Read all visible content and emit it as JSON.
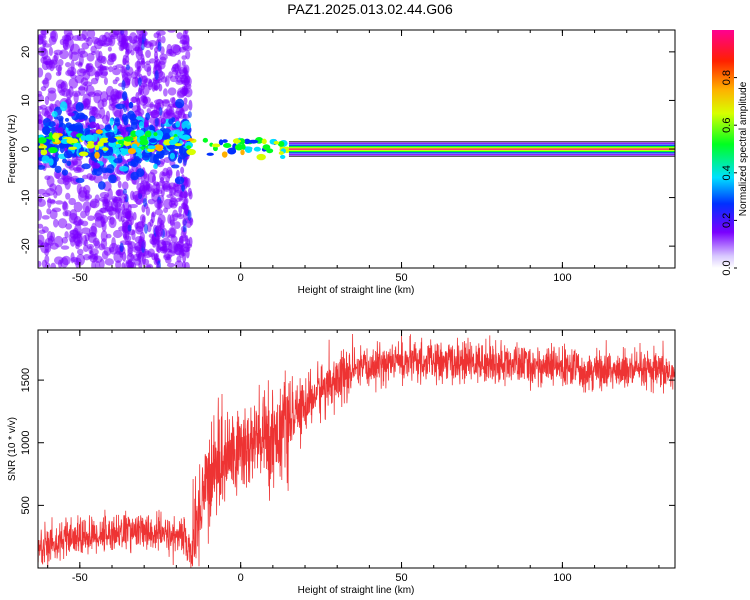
{
  "title": "PAZ1.2025.013.02.44.G06",
  "chart_data": [
    {
      "type": "heatmap",
      "xlabel": "Height of straight line (km)",
      "ylabel": "Frequency (Hz)",
      "xlim": [
        -63,
        135
      ],
      "ylim": [
        -24.5,
        24.5
      ],
      "xticks": [
        -50,
        0,
        50,
        100
      ],
      "yticks": [
        -20,
        -10,
        0,
        10,
        20
      ],
      "colorbar": {
        "label": "Normalized spectral amplitude",
        "ticks": [
          0.0,
          0.2,
          0.4,
          0.6,
          0.8
        ],
        "range": [
          0,
          1
        ]
      },
      "regions": [
        {
          "x_range": [
            -63,
            -16
          ],
          "description_freq_spread": 24,
          "peak_freq": 1.5
        },
        {
          "x_range": [
            -16,
            15
          ],
          "description_freq_spread": 2,
          "peak_freq": 0.5
        },
        {
          "x_range": [
            15,
            135
          ],
          "description_freq_spread": 1,
          "peak_freq": 0.0
        }
      ]
    },
    {
      "type": "line",
      "xlabel": "Height of straight line (km)",
      "ylabel": "SNR (10 * v/v)",
      "xlim": [
        -63,
        135
      ],
      "ylim": [
        0,
        1900
      ],
      "xticks": [
        -50,
        0,
        50,
        100
      ],
      "yticks": [
        500,
        1000,
        1500
      ],
      "color": "#ee3333",
      "series": [
        {
          "x": [
            -63,
            -55,
            -45,
            -35,
            -25,
            -18,
            -15,
            -12,
            -8,
            -4,
            0,
            5,
            10,
            15,
            20,
            25,
            30,
            35,
            40,
            45,
            50,
            60,
            70,
            80,
            90,
            100,
            110,
            120,
            135
          ],
          "values": [
            170,
            220,
            260,
            300,
            270,
            250,
            120,
            600,
            820,
            880,
            950,
            1000,
            1050,
            1150,
            1300,
            1430,
            1500,
            1560,
            1600,
            1640,
            1650,
            1640,
            1640,
            1630,
            1620,
            1600,
            1580,
            1570,
            1560
          ]
        }
      ]
    }
  ]
}
